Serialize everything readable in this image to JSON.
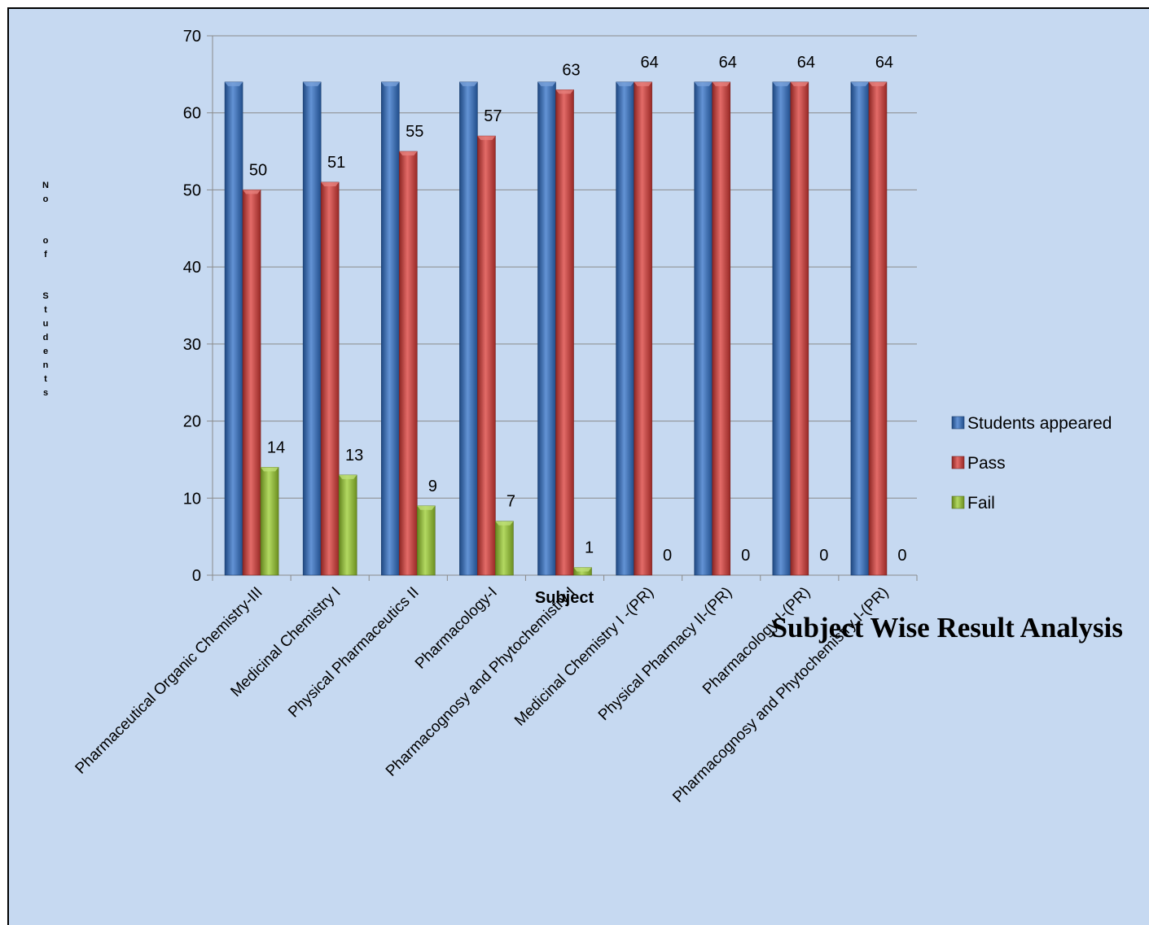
{
  "chart_data": {
    "type": "bar",
    "title": "Subject Wise Result Analysis",
    "xlabel": "Subject",
    "ylabel": "No of Students",
    "ylim": [
      0,
      70
    ],
    "yticks": [
      0,
      10,
      20,
      30,
      40,
      50,
      60,
      70
    ],
    "grid": true,
    "legend": "right",
    "categories": [
      "Pharmaceutical Organic Chemistry-III",
      "Medicinal Chemistry I",
      "Physical Pharmaceutics II",
      "Pharmacology-I",
      "Pharmacognosy and Phytochemistry I",
      "Medicinal Chemistry I -(PR)",
      "Physical Pharmacy II-(PR)",
      "Pharmacology I-(PR)",
      "Pharmacognosy and Phytochemistry I-(PR)"
    ],
    "series": [
      {
        "name": "Students appeared",
        "color": "#2f6fc7",
        "values": [
          64,
          64,
          64,
          64,
          64,
          64,
          64,
          64,
          64
        ],
        "show_labels": false
      },
      {
        "name": "Pass",
        "color": "#d93a36",
        "values": [
          50,
          51,
          55,
          57,
          63,
          64,
          64,
          64,
          64
        ],
        "show_labels": true
      },
      {
        "name": "Fail",
        "color": "#9acc2e",
        "values": [
          14,
          13,
          9,
          7,
          1,
          0,
          0,
          0,
          0
        ],
        "show_labels": true
      }
    ]
  }
}
